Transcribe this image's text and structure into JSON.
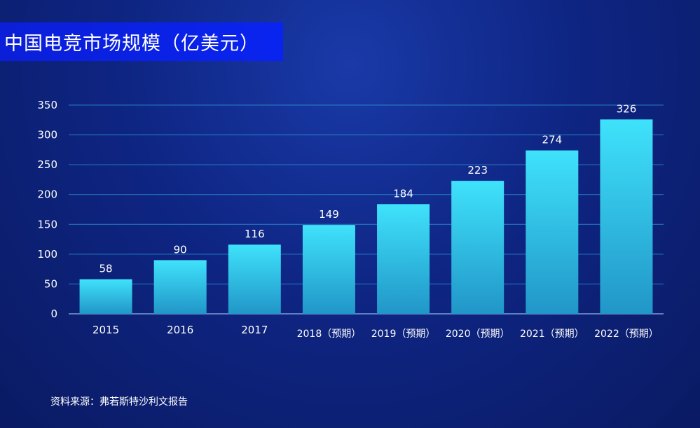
{
  "title": "中国电竞市场规模（亿美元）",
  "source": "资料来源：弗若斯特沙利文报告",
  "colors": {
    "bar_top": "#3fe2fb",
    "bar_bottom": "#2196c8",
    "grid": "#2f9cd6",
    "text": "#ffffff",
    "title_bg": "#0a22e6"
  },
  "chart_data": {
    "type": "bar",
    "title": "中国电竞市场规模（亿美元）",
    "categories": [
      "2015",
      "2016",
      "2017",
      "2018（预期）",
      "2019（预期）",
      "2020（预期）",
      "2021（预期）",
      "2022（预期）"
    ],
    "values": [
      58,
      90,
      116,
      149,
      184,
      223,
      274,
      326
    ],
    "yticks": [
      0,
      50,
      100,
      150,
      200,
      250,
      300,
      350
    ],
    "ylim": [
      0,
      350
    ],
    "xlabel": "",
    "ylabel": "",
    "grid": true,
    "legend": "none",
    "data_labels": true
  }
}
